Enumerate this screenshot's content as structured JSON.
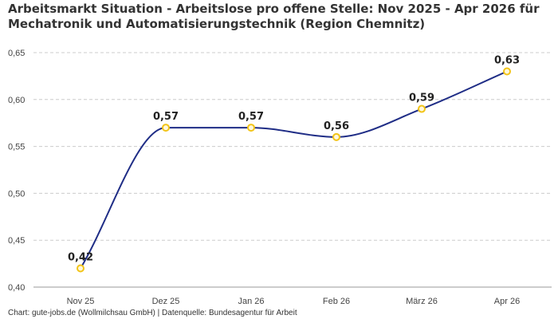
{
  "title_line1": "Arbeitsmarkt Situation - Arbeitslose pro offene Stelle: Nov 2025 - Apr 2026 für",
  "title_line2": "Mechatronik und Automatisierungstechnik (Region Chemnitz)",
  "credit": "Chart: gute-jobs.de (Wollmilchsau GmbH) | Datenquelle: Bundesagentur für Arbeit",
  "chart_data": {
    "type": "line",
    "title": "Arbeitsmarkt Situation - Arbeitslose pro offene Stelle: Nov 2025 - Apr 2026 für Mechatronik und Automatisierungstechnik (Region Chemnitz)",
    "xlabel": "",
    "ylabel": "",
    "categories": [
      "Nov 25",
      "Dez 25",
      "Jan 26",
      "Feb 26",
      "März 26",
      "Apr 26"
    ],
    "values": [
      0.42,
      0.57,
      0.57,
      0.56,
      0.59,
      0.63
    ],
    "data_labels": [
      "0,42",
      "0,57",
      "0,57",
      "0,56",
      "0,59",
      "0,63"
    ],
    "ylim": [
      0.4,
      0.65
    ],
    "yticks": [
      0.4,
      0.45,
      0.5,
      0.55,
      0.6,
      0.65
    ],
    "ytick_labels": [
      "0,40",
      "0,45",
      "0,50",
      "0,55",
      "0,60",
      "0,65"
    ],
    "grid": true,
    "legend": "none",
    "colors": {
      "line": "#1f2d86",
      "marker_stroke": "#f2c418",
      "marker_fill": "#fff8dc",
      "grid": "#cccccc"
    }
  }
}
